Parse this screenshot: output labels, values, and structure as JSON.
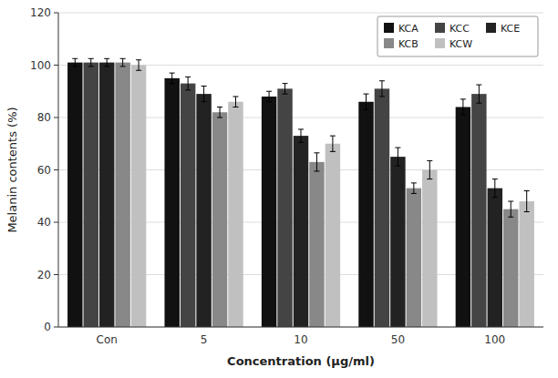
{
  "chart_data": {
    "type": "bar",
    "categories": [
      "Con",
      "5",
      "10",
      "50",
      "100"
    ],
    "series": [
      {
        "name": "KCA",
        "color": "#111111",
        "values": [
          101,
          95,
          88,
          86,
          84
        ],
        "errors": [
          1.5,
          2.0,
          2.0,
          3.0,
          3.0
        ]
      },
      {
        "name": "KCC",
        "color": "#444444",
        "values": [
          101,
          93,
          91,
          91,
          89
        ],
        "errors": [
          1.5,
          2.5,
          2.0,
          3.0,
          3.5
        ]
      },
      {
        "name": "KCE",
        "color": "#222222",
        "values": [
          101,
          89,
          73,
          65,
          53
        ],
        "errors": [
          1.5,
          3.0,
          2.5,
          3.5,
          3.5
        ]
      },
      {
        "name": "KCB",
        "color": "#888888",
        "values": [
          101,
          82,
          63,
          53,
          45
        ],
        "errors": [
          1.5,
          2.0,
          3.5,
          2.0,
          3.0
        ]
      },
      {
        "name": "KCW",
        "color": "#c0c0c0",
        "values": [
          100,
          86,
          70,
          60,
          48
        ],
        "errors": [
          2.0,
          2.0,
          3.0,
          3.5,
          4.0
        ]
      }
    ],
    "xlabel": "Concentration (μg/ml)",
    "ylabel": "Melanin contents (%)",
    "ylim": [
      0,
      120
    ],
    "yticks": [
      0,
      20,
      40,
      60,
      80,
      100,
      120
    ],
    "grid": true,
    "legend": "upper right"
  }
}
